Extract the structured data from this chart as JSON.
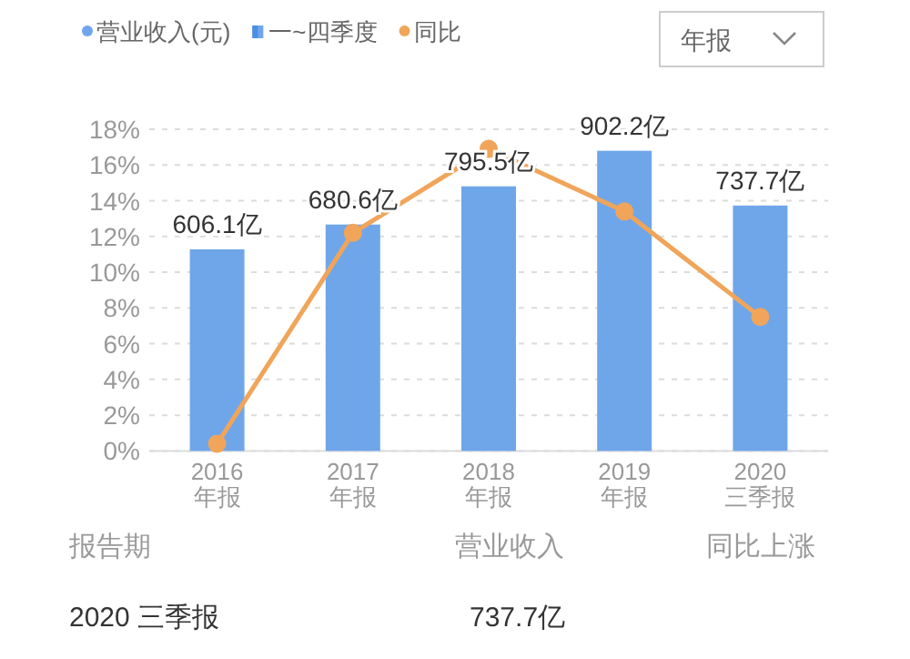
{
  "chart_data": {
    "type": "bar",
    "categories": [
      "2016\n年报",
      "2017\n年报",
      "2018\n年报",
      "2019\n年报",
      "2020\n三季报"
    ],
    "series": [
      {
        "name": "营业收入(元)",
        "type": "bar",
        "axis": "y2",
        "color": "#6fa6ea",
        "values": [
          606.1,
          680.6,
          795.5,
          902.2,
          737.7
        ],
        "value_labels": [
          "606.1亿",
          "680.6亿",
          "795.5亿",
          "902.2亿",
          "737.7亿"
        ]
      },
      {
        "name": "同比",
        "type": "line",
        "color": "#f0a55a",
        "values": [
          0.4,
          12.2,
          16.9,
          13.4,
          7.5
        ]
      }
    ],
    "ylim": [
      0,
      18
    ],
    "yticks": [
      {
        "value": 0,
        "label": "0%"
      },
      {
        "value": 2,
        "label": "2%"
      },
      {
        "value": 4,
        "label": "4%"
      },
      {
        "value": 6,
        "label": "6%"
      },
      {
        "value": 8,
        "label": "8%"
      },
      {
        "value": 10,
        "label": "10%"
      },
      {
        "value": 12,
        "label": "12%"
      },
      {
        "value": 14,
        "label": "14%"
      },
      {
        "value": 16,
        "label": "16%"
      },
      {
        "value": 18,
        "label": "18%"
      }
    ],
    "grid": "y",
    "legend": "top left",
    "marker": "circle",
    "annotations": [
      "年报",
      "一~四季度",
      "报告期",
      "营业收入",
      "同比上涨",
      "2020 三季报",
      "737.7亿"
    ]
  }
}
